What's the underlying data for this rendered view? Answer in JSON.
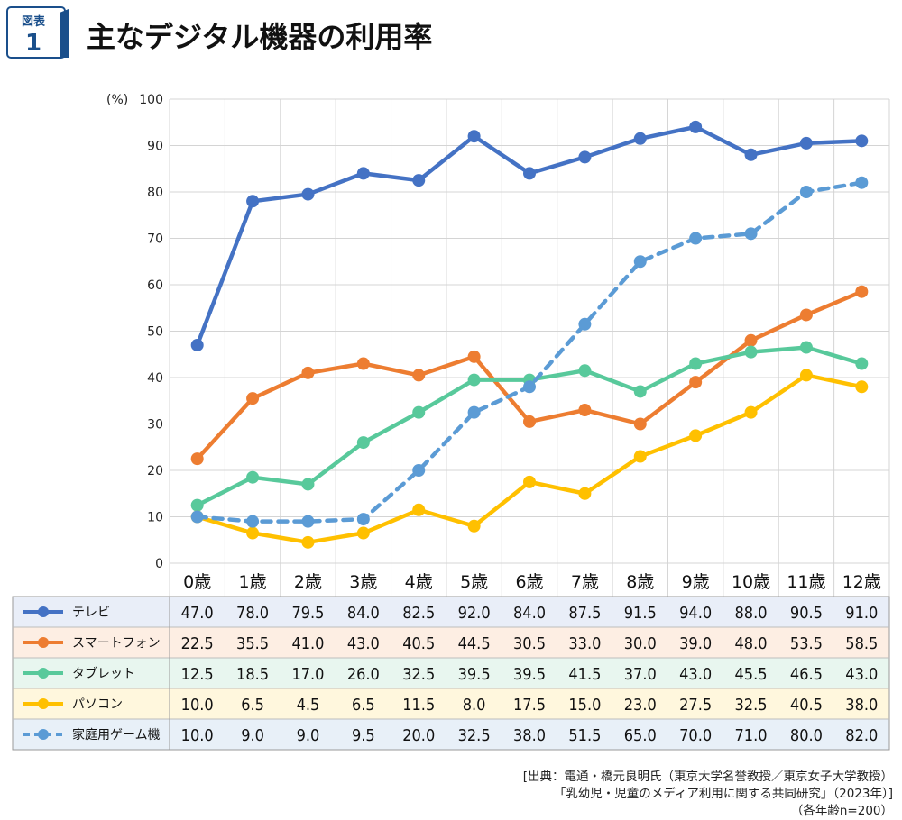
{
  "figure": {
    "badge_label": "図表",
    "badge_number": "1",
    "title": "主なデジタル機器の利用率"
  },
  "chart_data": {
    "type": "line",
    "title": "主なデジタル機器の利用率",
    "ylabel": "(%)",
    "ylim": [
      0,
      100
    ],
    "yticks": [
      0,
      10,
      20,
      30,
      40,
      50,
      60,
      70,
      80,
      90,
      100
    ],
    "categories": [
      "0歳",
      "1歳",
      "2歳",
      "3歳",
      "4歳",
      "5歳",
      "6歳",
      "7歳",
      "8歳",
      "9歳",
      "10歳",
      "11歳",
      "12歳"
    ],
    "series": [
      {
        "name": "テレビ",
        "color": "#4472c4",
        "dashed": false,
        "values": [
          47.0,
          78.0,
          79.5,
          84.0,
          82.5,
          92.0,
          84.0,
          87.5,
          91.5,
          94.0,
          88.0,
          90.5,
          91.0
        ],
        "labels": [
          "47.0",
          "78.0",
          "79.5",
          "84.0",
          "82.5",
          "92.0",
          "84.0",
          "87.5",
          "91.5",
          "94.0",
          "88.0",
          "90.5",
          "91.0"
        ]
      },
      {
        "name": "スマートフォン",
        "color": "#ed7d31",
        "dashed": false,
        "values": [
          22.5,
          35.5,
          41.0,
          43.0,
          40.5,
          44.5,
          30.5,
          33.0,
          30.0,
          39.0,
          48.0,
          53.5,
          58.5
        ],
        "labels": [
          "22.5",
          "35.5",
          "41.0",
          "43.0",
          "40.5",
          "44.5",
          "30.5",
          "33.0",
          "30.0",
          "39.0",
          "48.0",
          "53.5",
          "58.5"
        ]
      },
      {
        "name": "タブレット",
        "color": "#58c99b",
        "dashed": false,
        "values": [
          12.5,
          18.5,
          17.0,
          26.0,
          32.5,
          39.5,
          39.5,
          41.5,
          37.0,
          43.0,
          45.5,
          46.5,
          43.0
        ],
        "labels": [
          "12.5",
          "18.5",
          "17.0",
          "26.0",
          "32.5",
          "39.5",
          "39.5",
          "41.5",
          "37.0",
          "43.0",
          "45.5",
          "46.5",
          "43.0"
        ]
      },
      {
        "name": "パソコン",
        "color": "#ffc000",
        "dashed": false,
        "values": [
          10.0,
          6.5,
          4.5,
          6.5,
          11.5,
          8.0,
          17.5,
          15.0,
          23.0,
          27.5,
          32.5,
          40.5,
          38.0
        ],
        "labels": [
          "10.0",
          "6.5",
          "4.5",
          "6.5",
          "11.5",
          "8.0",
          "17.5",
          "15.0",
          "23.0",
          "27.5",
          "32.5",
          "40.5",
          "38.0"
        ]
      },
      {
        "name": "家庭用ゲーム機",
        "color": "#5b9bd5",
        "dashed": true,
        "values": [
          10.0,
          9.0,
          9.0,
          9.5,
          20.0,
          32.5,
          38.0,
          51.5,
          65.0,
          70.0,
          71.0,
          80.0,
          82.0
        ],
        "labels": [
          "10.0",
          "9.0",
          "9.0",
          "9.5",
          "20.0",
          "32.5",
          "38.0",
          "51.5",
          "65.0",
          "70.0",
          "71.0",
          "80.0",
          "82.0"
        ]
      }
    ],
    "row_colors": [
      "#e9eef8",
      "#fdeee3",
      "#e8f6ef",
      "#fff7dd",
      "#e8f0f8"
    ],
    "grid": true
  },
  "source": {
    "line1": "[出典：電通・橋元良明氏（東京大学名誉教授／東京女子大学教授）",
    "line2": "「乳幼児・児童のメディア利用に関する共同研究」（2023年）]",
    "line3": "（各年齢n=200）"
  }
}
